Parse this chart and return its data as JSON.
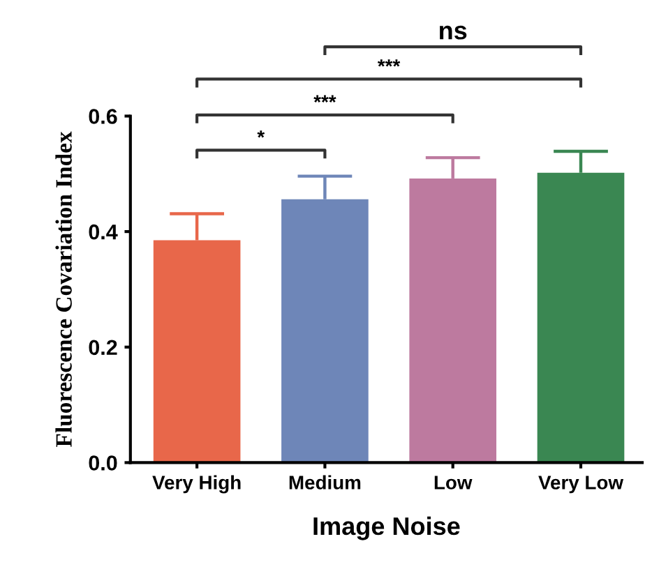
{
  "chart_data": {
    "type": "bar",
    "xlabel": "Image Noise",
    "ylabel": "Fluorescence Covariation Index",
    "categories": [
      "Very High",
      "Medium",
      "Low",
      "Very Low"
    ],
    "values": [
      0.385,
      0.456,
      0.492,
      0.502
    ],
    "colors": [
      "#e8674a",
      "#6e86b8",
      "#bd7a9f",
      "#3a8752"
    ],
    "errors": [
      [
        0.385,
        0.431
      ],
      [
        0.456,
        0.496
      ],
      [
        0.492,
        0.528
      ],
      [
        0.502,
        0.539
      ]
    ],
    "ylim": [
      0,
      0.6
    ],
    "yticks": [
      {
        "value": 0,
        "label": "0.0"
      },
      0.2,
      0.4,
      0.6
    ],
    "grid": false,
    "legend": false,
    "annotations": [
      "*",
      "***",
      "***",
      "ns"
    ]
  }
}
